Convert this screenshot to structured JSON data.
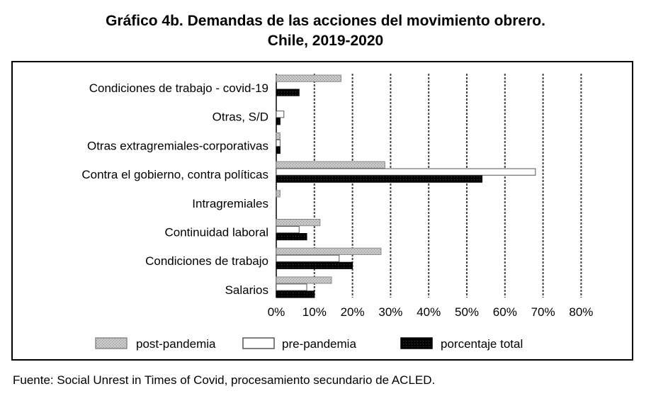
{
  "title_line1": "Gráfico 4b. Demandas de las acciones del movimiento obrero.",
  "title_line2": "Chile, 2019-2020",
  "source": "Fuente: Social Unrest in Times of Covid, procesamiento secundario de ACLED.",
  "chart_data": {
    "type": "bar",
    "orientation": "horizontal",
    "categories": [
      "Condiciones de trabajo - covid-19",
      "Otras, S/D",
      "Otras extragremiales-corporativas",
      "Contra el gobierno, contra políticas",
      "Intragremiales",
      "Continuidad laboral",
      "Condiciones de trabajo",
      "Salarios"
    ],
    "series": [
      {
        "name": "post-pandemia",
        "color": "#bdbdbd",
        "values": [
          17,
          0,
          1,
          28.5,
          1,
          11.5,
          27.5,
          14.5
        ]
      },
      {
        "name": "pre-pandemia",
        "color": "#ffffff",
        "values": [
          0,
          2,
          1,
          68,
          0,
          6,
          16.5,
          8
        ]
      },
      {
        "name": "porcentaje total",
        "color": "#000000",
        "values": [
          6,
          1,
          1,
          54,
          0,
          8,
          20,
          10
        ]
      }
    ],
    "xlim": [
      0,
      80
    ],
    "xticks": [
      "0%",
      "10%",
      "20%",
      "30%",
      "40%",
      "50%",
      "60%",
      "70%",
      "80%"
    ],
    "grid": true,
    "legend": "bottom"
  }
}
